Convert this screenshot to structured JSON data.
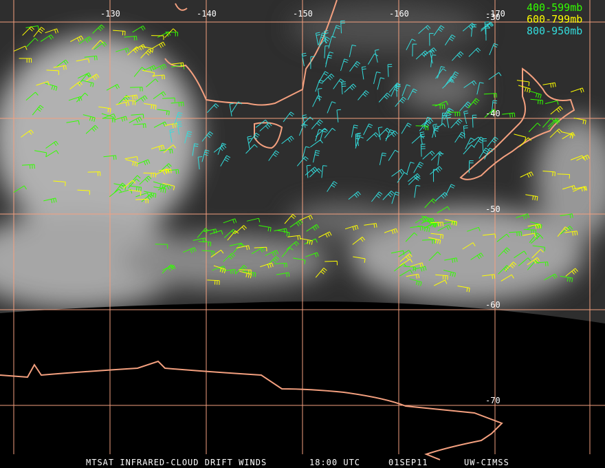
{
  "longitude_labels": [
    "-130",
    "-140",
    "-150",
    "-160",
    "-170"
  ],
  "latitude_labels": [
    "-30",
    "-40",
    "-50",
    "-60",
    "-70"
  ],
  "legend": [
    {
      "label": "400-599mb",
      "color": "#33ff00"
    },
    {
      "label": "600-799mb",
      "color": "#ffff00"
    },
    {
      "label": "800-950mb",
      "color": "#33dddd"
    }
  ],
  "footer": {
    "product": "MTSAT INFRARED-CLOUD DRIFT WINDS",
    "time": "18:00 UTC",
    "date": "01SEP11",
    "source": "UW-CIMSS"
  }
}
